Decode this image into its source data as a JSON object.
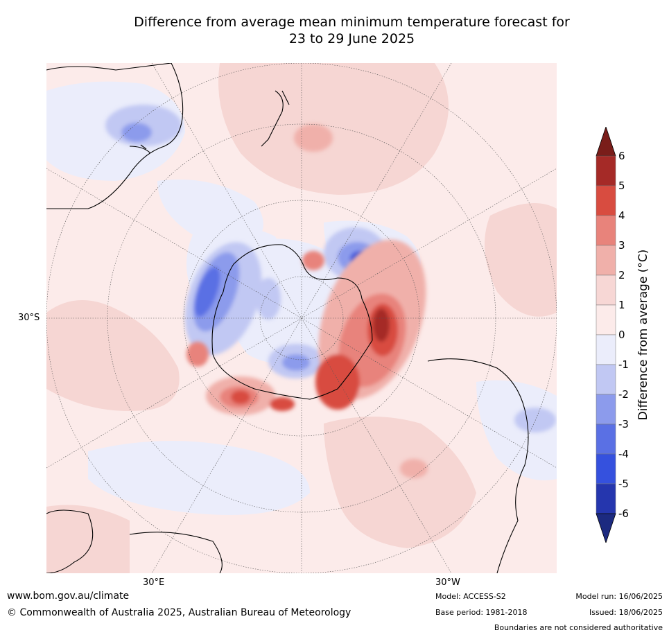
{
  "title_line1": "Difference from average mean minimum temperature forecast for",
  "title_line2": "23 to 29 June 2025",
  "map": {
    "lat_label": "30°S",
    "lon_label_east": "30°E",
    "lon_label_west": "30°W",
    "projection": "south-polar-stereographic"
  },
  "colorbar": {
    "label": "Difference from average (°C)",
    "ticks": [
      "6",
      "5",
      "4",
      "3",
      "2",
      "1",
      "0",
      "-1",
      "-2",
      "-3",
      "-4",
      "-5",
      "-6"
    ],
    "bins_high_to_low": [
      "#a52a27",
      "#d84c40",
      "#e8837b",
      "#f0b0aa",
      "#f7d7d5",
      "#fcebea",
      "#ebedfb",
      "#c1c8f3",
      "#8c9bec",
      "#5a70e4",
      "#3551de",
      "#2536ae"
    ],
    "over_color": "#7a1d1a",
    "under_color": "#1c2a80"
  },
  "footer": {
    "website": "www.bom.gov.au/climate",
    "copyright": "© Commonwealth of Australia 2025, Australian Bureau of Meteorology",
    "model": "Model: ACCESS-S2",
    "base_period": "Base period: 1981-2018",
    "model_run": "Model run: 16/06/2025",
    "issued": "Issued: 18/06/2025",
    "disclaimer": "Boundaries are not considered authoritative"
  }
}
